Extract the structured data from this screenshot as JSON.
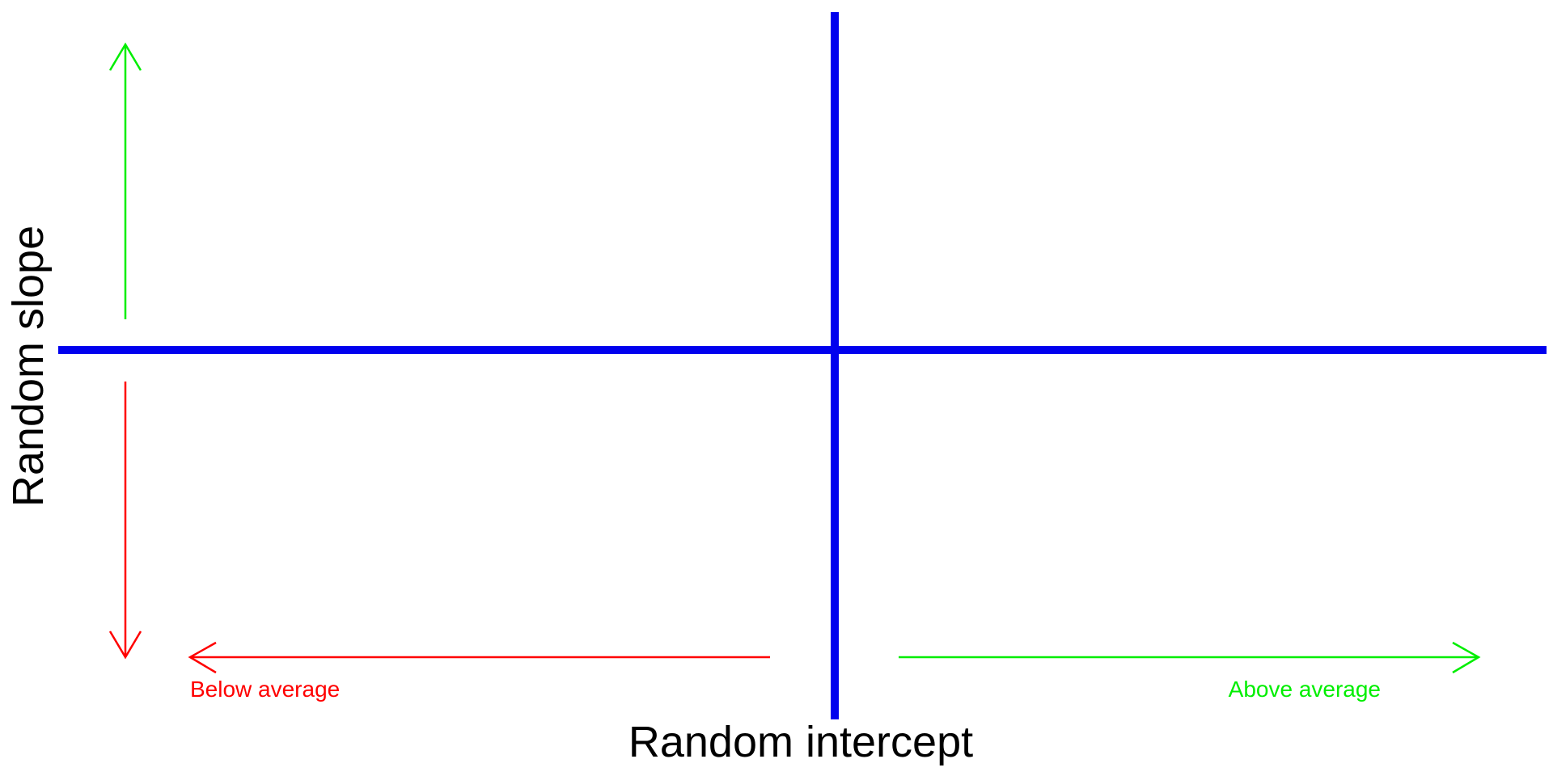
{
  "diagram": {
    "x_axis_label": "Random intercept",
    "y_axis_label": "Random slope",
    "below_label": "Below average",
    "above_label": "Above average"
  },
  "colors": {
    "axis": "#0000ee",
    "below": "#ff0000",
    "above": "#00ee00",
    "text": "#000000"
  }
}
